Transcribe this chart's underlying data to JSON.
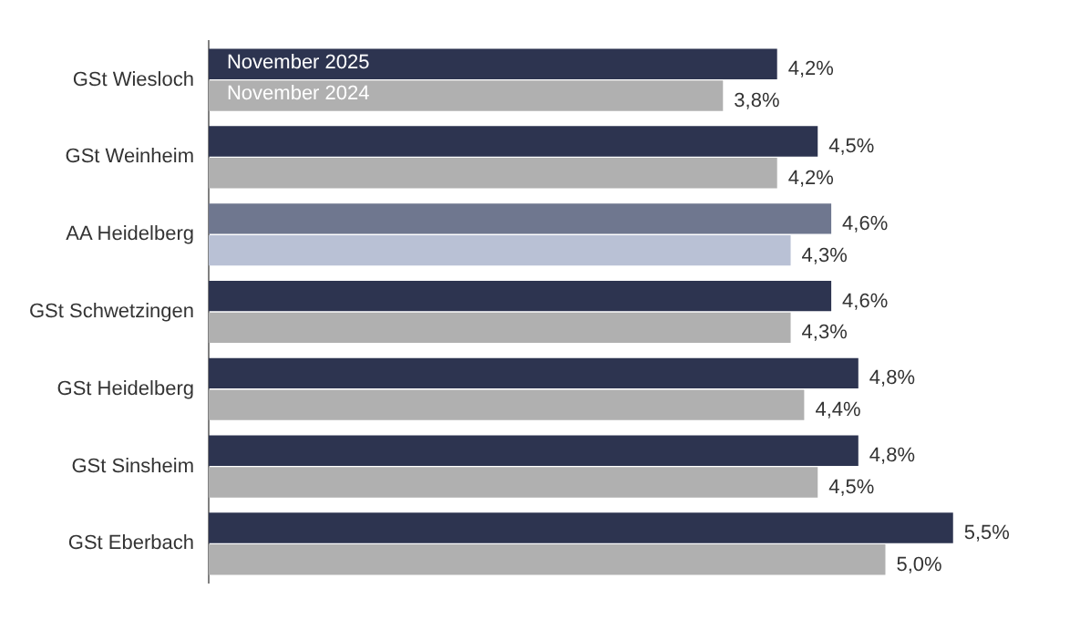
{
  "chart_data": {
    "type": "bar",
    "orientation": "horizontal",
    "categories": [
      "GSt Wiesloch",
      "GSt Weinheim",
      "AA Heidelberg",
      "GSt Schwetzingen",
      "GSt Heidelberg",
      "GSt Sinsheim",
      "GSt Eberbach"
    ],
    "series": [
      {
        "name": "November 2025",
        "colors": [
          "#2d3450",
          "#2d3450",
          "#6f778f",
          "#2d3450",
          "#2d3450",
          "#2d3450",
          "#2d3450"
        ],
        "values": [
          4.2,
          4.5,
          4.6,
          4.6,
          4.8,
          4.8,
          5.5
        ],
        "value_labels": [
          "4,2%",
          "4,5%",
          "4,6%",
          "4,6%",
          "4,8%",
          "4,8%",
          "5,5%"
        ]
      },
      {
        "name": "November 2024",
        "colors": [
          "#b0b0b0",
          "#b0b0b0",
          "#b9c1d5",
          "#b0b0b0",
          "#b0b0b0",
          "#b0b0b0",
          "#b0b0b0"
        ],
        "values": [
          3.8,
          4.2,
          4.3,
          4.3,
          4.4,
          4.5,
          5.0
        ],
        "value_labels": [
          "3,8%",
          "4,2%",
          "4,3%",
          "4,3%",
          "4,4%",
          "4,5%",
          "5,0%"
        ]
      }
    ],
    "tick_labels": "y"
  }
}
